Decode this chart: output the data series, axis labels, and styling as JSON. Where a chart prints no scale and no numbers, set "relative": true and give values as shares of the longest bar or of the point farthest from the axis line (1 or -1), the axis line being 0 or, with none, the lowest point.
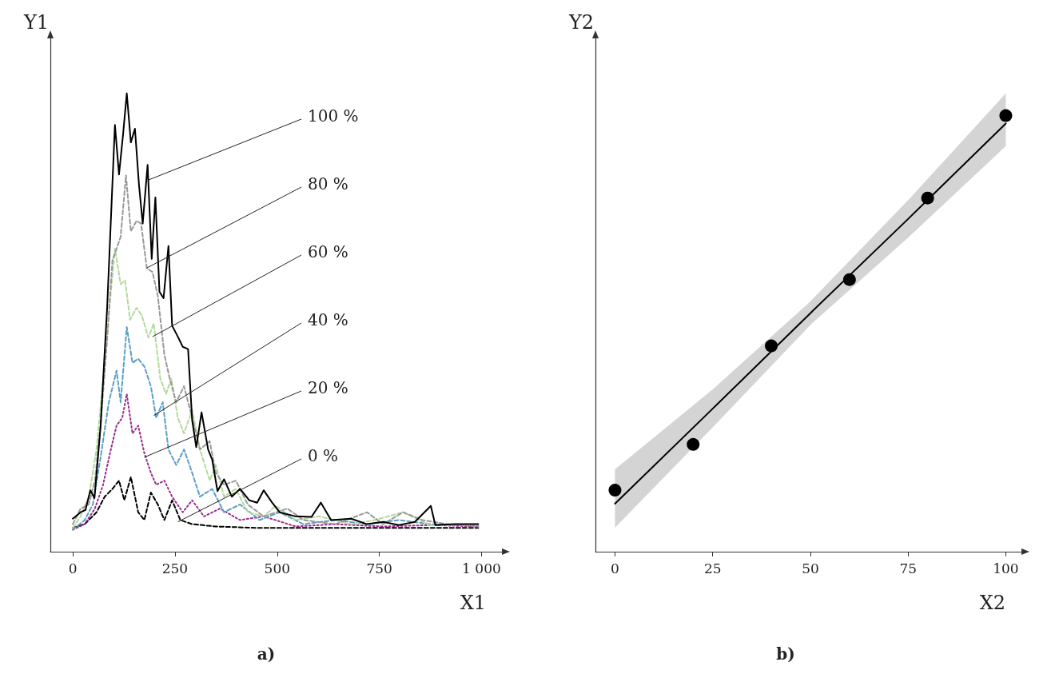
{
  "chart_data": [
    {
      "type": "line",
      "title": "a)",
      "xlabel": "X1",
      "ylabel": "Y1",
      "relative": true,
      "xlim": [
        -55,
        1050
      ],
      "xticks": [
        0,
        250,
        500,
        750,
        {
          "value": 1000,
          "label": "1 000"
        }
      ],
      "grid": false,
      "marker": "none",
      "series": [
        {
          "color": "#000000",
          "line_style": "solid",
          "x": [
            0,
            19,
            31,
            43,
            53,
            68,
            84,
            103,
            113,
            123,
            132,
            142,
            152,
            162,
            171,
            183,
            193,
            202,
            212,
            222,
            234,
            243,
            257,
            269,
            282,
            292,
            302,
            315,
            331,
            341,
            354,
            370,
            389,
            409,
            432,
            451,
            467,
            487,
            506,
            545,
            584,
            607,
            632,
            681,
            720,
            759,
            798,
            837,
            876,
            887,
            934,
            992
          ],
          "values": [
            0.072,
            0.086,
            0.091,
            0.134,
            0.117,
            0.275,
            0.533,
            0.931,
            0.823,
            0.911,
            1.0,
            0.893,
            0.923,
            0.799,
            0.716,
            0.844,
            0.639,
            0.773,
            0.567,
            0.553,
            0.667,
            0.493,
            0.469,
            0.447,
            0.442,
            0.287,
            0.228,
            0.304,
            0.223,
            0.201,
            0.132,
            0.158,
            0.12,
            0.137,
            0.112,
            0.107,
            0.134,
            0.108,
            0.086,
            0.077,
            0.076,
            0.107,
            0.069,
            0.072,
            0.06,
            0.065,
            0.058,
            0.065,
            0.1,
            0.058,
            0.06,
            0.06
          ]
        },
        {
          "color": "#999999",
          "line_style": "dashed",
          "x": [
            0,
            19,
            39,
            54,
            68,
            84,
            97,
            107,
            117,
            130,
            142,
            156,
            167,
            181,
            195,
            208,
            224,
            237,
            253,
            272,
            292,
            311,
            335,
            350,
            370,
            399,
            428,
            467,
            525,
            564,
            642,
            720,
            759,
            808,
            856,
            915,
            992
          ],
          "values": [
            0.06,
            0.094,
            0.103,
            0.155,
            0.275,
            0.464,
            0.636,
            0.661,
            0.687,
            0.821,
            0.699,
            0.722,
            0.716,
            0.619,
            0.61,
            0.558,
            0.43,
            0.378,
            0.326,
            0.361,
            0.292,
            0.223,
            0.241,
            0.172,
            0.146,
            0.155,
            0.103,
            0.077,
            0.094,
            0.069,
            0.06,
            0.086,
            0.06,
            0.086,
            0.069,
            0.06,
            0.055
          ]
        },
        {
          "color": "#b5d99c",
          "line_style": "dashed",
          "x": [
            0,
            19,
            39,
            58,
            78,
            93,
            103,
            117,
            128,
            140,
            156,
            169,
            185,
            198,
            214,
            228,
            241,
            257,
            272,
            292,
            311,
            335,
            350,
            370,
            399,
            428,
            467,
            496,
            545,
            603,
            681,
            739,
            808,
            876,
            992
          ],
          "values": [
            0.052,
            0.077,
            0.12,
            0.223,
            0.412,
            0.567,
            0.661,
            0.584,
            0.592,
            0.506,
            0.532,
            0.515,
            0.467,
            0.498,
            0.378,
            0.344,
            0.378,
            0.292,
            0.258,
            0.309,
            0.223,
            0.155,
            0.189,
            0.12,
            0.137,
            0.086,
            0.077,
            0.1,
            0.069,
            0.077,
            0.06,
            0.069,
            0.086,
            0.057,
            0.06
          ]
        },
        {
          "color": "#5b9fc5",
          "line_style": "dashed",
          "x": [
            0,
            29,
            49,
            68,
            88,
            107,
            117,
            132,
            146,
            160,
            175,
            191,
            204,
            220,
            234,
            253,
            272,
            292,
            311,
            341,
            370,
            409,
            457,
            506,
            564,
            642,
            720,
            798,
            876,
            992
          ],
          "values": [
            0.048,
            0.069,
            0.103,
            0.206,
            0.326,
            0.395,
            0.326,
            0.49,
            0.412,
            0.421,
            0.404,
            0.361,
            0.292,
            0.326,
            0.223,
            0.189,
            0.223,
            0.172,
            0.12,
            0.137,
            0.086,
            0.103,
            0.069,
            0.086,
            0.06,
            0.069,
            0.06,
            0.069,
            0.06,
            0.058
          ]
        },
        {
          "color": "#9c2a8c",
          "line_style": "dotted",
          "x": [
            0,
            29,
            54,
            74,
            93,
            107,
            121,
            132,
            146,
            160,
            175,
            191,
            204,
            224,
            243,
            269,
            292,
            321,
            360,
            409,
            467,
            545,
            642,
            759,
            876,
            992
          ],
          "values": [
            0.048,
            0.06,
            0.094,
            0.146,
            0.223,
            0.275,
            0.292,
            0.344,
            0.258,
            0.275,
            0.215,
            0.172,
            0.146,
            0.155,
            0.12,
            0.086,
            0.112,
            0.077,
            0.094,
            0.069,
            0.077,
            0.055,
            0.06,
            0.055,
            0.058,
            0.055
          ]
        },
        {
          "color": "#000000",
          "line_style": "dashed",
          "x": [
            0,
            29,
            58,
            78,
            97,
            113,
            126,
            142,
            160,
            175,
            191,
            208,
            224,
            243,
            263,
            292,
            350,
            447,
            603,
            798,
            992
          ],
          "values": [
            0.052,
            0.06,
            0.086,
            0.12,
            0.137,
            0.155,
            0.112,
            0.163,
            0.086,
            0.069,
            0.129,
            0.103,
            0.069,
            0.112,
            0.069,
            0.06,
            0.055,
            0.052,
            0.052,
            0.052,
            0.052
          ]
        }
      ],
      "annotations": [
        {
          "text": "100 %",
          "x": 185,
          "y": 0.811
        },
        {
          "text": "80 %",
          "x": 181,
          "y": 0.619
        },
        {
          "text": "60 %",
          "x": 195,
          "y": 0.469
        },
        {
          "text": "40 %",
          "x": 198,
          "y": 0.297
        },
        {
          "text": "20 %",
          "x": 175,
          "y": 0.206
        },
        {
          "text": "0 %",
          "x": 257,
          "y": 0.065
        }
      ]
    },
    {
      "type": "line",
      "title": "b)",
      "xlabel": "X2",
      "ylabel": "Y2",
      "relative": true,
      "xlim": [
        -5,
        104
      ],
      "xticks": [
        0,
        25,
        50,
        75,
        100
      ],
      "grid": false,
      "series": [
        {
          "color": "#000000",
          "line_style": "solid",
          "marker": "none",
          "x": [
            0,
            25,
            50,
            75,
            100
          ],
          "values": [
            0.11,
            0.328,
            0.547,
            0.763,
            0.982
          ],
          "lower": [
            0.055,
            0.285,
            0.52,
            0.72,
            0.93
          ],
          "upper": [
            0.189,
            0.372,
            0.574,
            0.806,
            1.051
          ]
        },
        {
          "type": "scatter",
          "color": "#000000",
          "marker": "circle",
          "x": [
            0,
            20,
            40,
            60,
            80,
            100
          ],
          "values": [
            0.141,
            0.246,
            0.472,
            0.624,
            0.811,
            1.0
          ]
        }
      ]
    }
  ]
}
